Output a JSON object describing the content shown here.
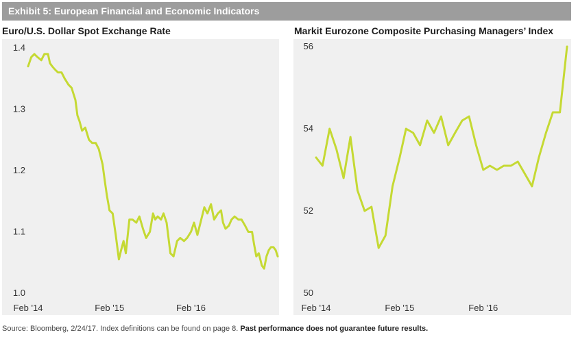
{
  "header": {
    "exhibit_title": "Exhibit 5: European Financial and Economic Indicators"
  },
  "footer": {
    "source_text": "Source: Bloomberg, 2/24/17. Index definitions can be found on page 8. ",
    "disclaimer": "Past performance does not guarantee future results."
  },
  "colors": {
    "line": "#c5d933",
    "panel_bg": "#f0f0f0",
    "header_bg": "#9d9d9d"
  },
  "chart_data": [
    {
      "type": "line",
      "title": "Euro/U.S. Dollar Spot Exchange Rate",
      "xlabel": "",
      "ylabel": "",
      "ylim": [
        1.0,
        1.4
      ],
      "yticks": [
        1.0,
        1.1,
        1.2,
        1.3,
        1.4
      ],
      "ytick_labels": [
        "1.0",
        "1.1",
        "1.2",
        "1.3",
        "1.4"
      ],
      "xlim": [
        "2014-02-01",
        "2017-02-24"
      ],
      "xticks": [
        "2014-02-01",
        "2015-02-01",
        "2016-02-01"
      ],
      "xtick_labels": [
        "Feb '14",
        "Feb '15",
        "Feb '16"
      ],
      "grid": false,
      "series": [
        {
          "x": [
            "2014-02-01",
            "2014-02-15",
            "2014-03-01",
            "2014-03-15",
            "2014-04-01",
            "2014-04-15",
            "2014-05-01",
            "2014-05-10",
            "2014-05-20",
            "2014-06-01",
            "2014-06-15",
            "2014-07-01",
            "2014-07-15",
            "2014-08-01",
            "2014-08-15",
            "2014-09-01",
            "2014-09-10",
            "2014-09-20",
            "2014-10-01",
            "2014-10-15",
            "2014-11-01",
            "2014-11-15",
            "2014-12-01",
            "2014-12-15",
            "2015-01-01",
            "2015-01-10",
            "2015-01-20",
            "2015-02-01",
            "2015-02-15",
            "2015-03-01",
            "2015-03-15",
            "2015-03-25",
            "2015-04-05",
            "2015-04-15",
            "2015-05-01",
            "2015-05-15",
            "2015-06-01",
            "2015-06-15",
            "2015-07-01",
            "2015-07-15",
            "2015-08-01",
            "2015-08-15",
            "2015-08-25",
            "2015-09-05",
            "2015-09-20",
            "2015-10-01",
            "2015-10-15",
            "2015-11-01",
            "2015-11-15",
            "2015-12-01",
            "2015-12-15",
            "2016-01-01",
            "2016-01-15",
            "2016-02-01",
            "2016-02-15",
            "2016-03-01",
            "2016-03-15",
            "2016-04-01",
            "2016-04-15",
            "2016-05-01",
            "2016-05-15",
            "2016-06-01",
            "2016-06-15",
            "2016-06-24",
            "2016-07-05",
            "2016-07-20",
            "2016-08-01",
            "2016-08-15",
            "2016-09-01",
            "2016-09-15",
            "2016-10-01",
            "2016-10-15",
            "2016-11-01",
            "2016-11-10",
            "2016-11-20",
            "2016-12-01",
            "2016-12-15",
            "2016-12-25",
            "2017-01-05",
            "2017-01-15",
            "2017-01-25",
            "2017-02-05",
            "2017-02-15",
            "2017-02-24"
          ],
          "y": [
            1.37,
            1.385,
            1.39,
            1.385,
            1.38,
            1.39,
            1.39,
            1.375,
            1.37,
            1.365,
            1.36,
            1.36,
            1.35,
            1.34,
            1.335,
            1.315,
            1.29,
            1.28,
            1.265,
            1.27,
            1.25,
            1.245,
            1.245,
            1.235,
            1.21,
            1.185,
            1.16,
            1.135,
            1.13,
            1.095,
            1.055,
            1.07,
            1.085,
            1.065,
            1.12,
            1.12,
            1.115,
            1.125,
            1.105,
            1.09,
            1.1,
            1.13,
            1.12,
            1.125,
            1.12,
            1.13,
            1.115,
            1.065,
            1.06,
            1.085,
            1.09,
            1.085,
            1.09,
            1.1,
            1.115,
            1.095,
            1.115,
            1.14,
            1.13,
            1.145,
            1.12,
            1.13,
            1.135,
            1.115,
            1.105,
            1.11,
            1.12,
            1.125,
            1.12,
            1.12,
            1.11,
            1.1,
            1.1,
            1.08,
            1.06,
            1.065,
            1.045,
            1.04,
            1.06,
            1.07,
            1.075,
            1.075,
            1.07,
            1.06
          ]
        }
      ]
    },
    {
      "type": "line",
      "title": "Markit Eurozone Composite Purchasing Managers’ Index",
      "xlabel": "",
      "ylabel": "",
      "ylim": [
        50,
        56
      ],
      "yticks": [
        50,
        52,
        54,
        56
      ],
      "ytick_labels": [
        "50",
        "52",
        "54",
        "56"
      ],
      "xlim": [
        "2014-02-01",
        "2017-02-01"
      ],
      "xticks": [
        "2014-02-01",
        "2015-02-01",
        "2016-02-01"
      ],
      "xtick_labels": [
        "Feb '14",
        "Feb '15",
        "Feb '16"
      ],
      "grid": false,
      "series": [
        {
          "x": [
            "2014-02-01",
            "2014-03-01",
            "2014-04-01",
            "2014-05-01",
            "2014-06-01",
            "2014-07-01",
            "2014-08-01",
            "2014-09-01",
            "2014-10-01",
            "2014-11-01",
            "2014-12-01",
            "2015-01-01",
            "2015-02-01",
            "2015-03-01",
            "2015-04-01",
            "2015-05-01",
            "2015-06-01",
            "2015-07-01",
            "2015-08-01",
            "2015-09-01",
            "2015-10-01",
            "2015-11-01",
            "2015-12-01",
            "2016-01-01",
            "2016-02-01",
            "2016-03-01",
            "2016-04-01",
            "2016-05-01",
            "2016-06-01",
            "2016-07-01",
            "2016-08-01",
            "2016-09-01",
            "2016-10-01",
            "2016-11-01",
            "2016-12-01",
            "2017-01-01",
            "2017-02-01"
          ],
          "y": [
            53.3,
            53.1,
            54.0,
            53.5,
            52.8,
            53.8,
            52.5,
            52.0,
            52.1,
            51.1,
            51.4,
            52.6,
            53.3,
            54.0,
            53.9,
            53.6,
            54.2,
            53.9,
            54.3,
            53.6,
            53.9,
            54.2,
            54.3,
            53.6,
            53.0,
            53.1,
            53.0,
            53.1,
            53.1,
            53.2,
            52.9,
            52.6,
            53.3,
            53.9,
            54.4,
            54.4,
            56.0
          ]
        }
      ]
    }
  ]
}
